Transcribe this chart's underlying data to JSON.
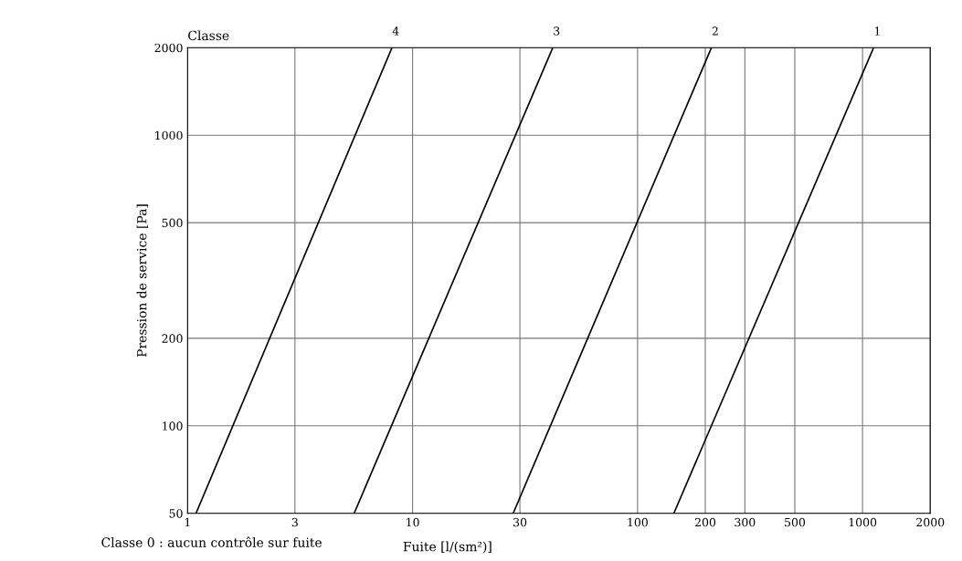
{
  "chart_data": {
    "type": "line",
    "title": "Classe",
    "xlabel": "Fuite [l/(sm²)]",
    "ylabel": "Pression de service [Pa]",
    "annotations": [
      "Classe 0 : aucun contrôle sur fuite"
    ],
    "series": [
      {
        "name": "4",
        "color": "#000000",
        "x": [
          1.09,
          8.1
        ],
        "values": [
          50,
          2000
        ]
      },
      {
        "name": "3",
        "color": "#000000",
        "x": [
          5.5,
          42
        ],
        "values": [
          50,
          2000
        ]
      },
      {
        "name": "2",
        "color": "#000000",
        "x": [
          28,
          213
        ],
        "values": [
          50,
          2000
        ]
      },
      {
        "name": "1",
        "color": "#000000",
        "x": [
          145,
          1120
        ],
        "values": [
          50,
          2000
        ]
      }
    ],
    "log": "xy",
    "xlim": [
      1,
      2000
    ],
    "ylim": [
      50,
      2000
    ],
    "xticks": [
      1,
      3,
      10,
      30,
      100,
      200,
      300,
      500,
      1000,
      2000
    ],
    "yticks": [
      50,
      100,
      200,
      500,
      1000,
      2000
    ],
    "grid": true,
    "legend": false,
    "marker": "none",
    "line_style": "solid"
  }
}
